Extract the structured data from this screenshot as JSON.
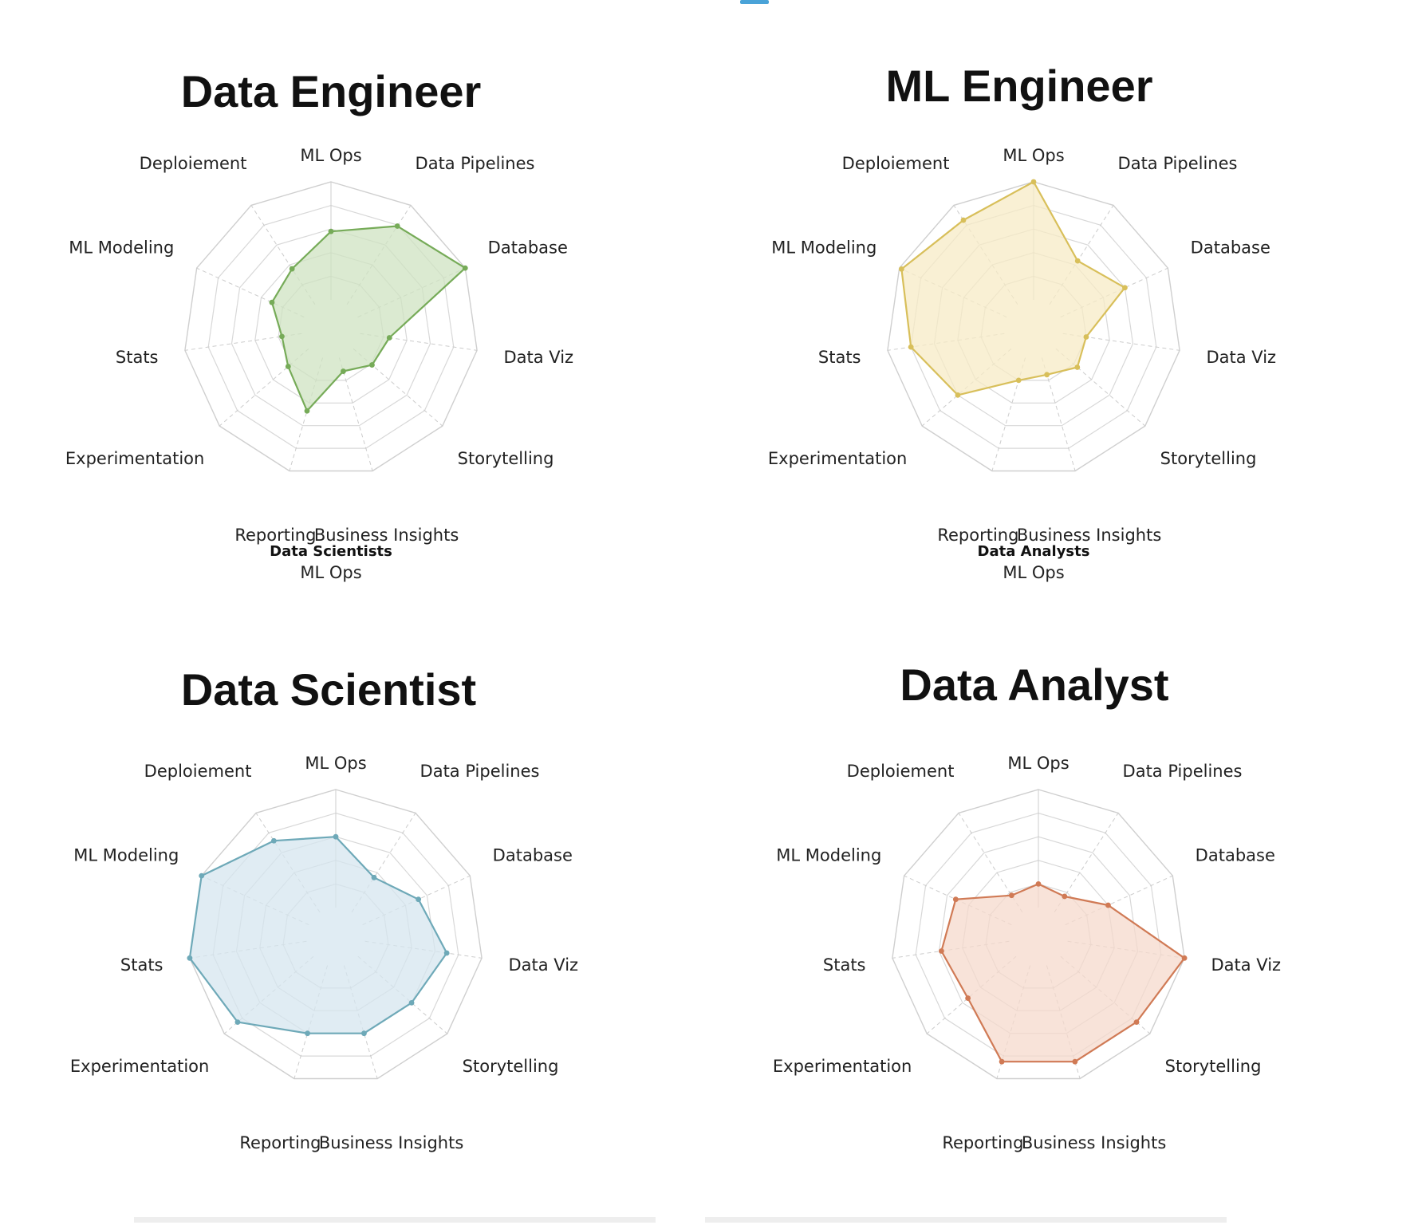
{
  "colors": {
    "data_engineer": {
      "stroke": "#76ab58",
      "fill": "#cfe3c2"
    },
    "ml_engineer": {
      "stroke": "#d8bf5a",
      "fill": "#f7ebc6"
    },
    "data_scientist": {
      "stroke": "#6ea9b8",
      "fill": "#d5e6ef"
    },
    "data_analyst": {
      "stroke": "#d07a55",
      "fill": "#f6d9cc"
    },
    "grid": "#d8d8d8"
  },
  "chart_data": [
    {
      "type": "radar",
      "title": "Data Engineer",
      "axes": [
        "ML Ops",
        "Data Pipelines",
        "Database",
        "Data Viz",
        "Storytelling",
        "Business Insights",
        "Reporting",
        "Experimentation",
        "Stats",
        "ML Modeling",
        "Deploiement"
      ],
      "values": [
        0.58,
        0.79,
        1.0,
        0.25,
        0.21,
        0.12,
        0.47,
        0.23,
        0.17,
        0.3,
        0.36
      ],
      "rlim": [
        0,
        1
      ],
      "rings": 5,
      "caption": "Data Scientists",
      "subcaption": "ML Ops",
      "color_key": "data_engineer"
    },
    {
      "type": "radar",
      "title": "ML Engineer",
      "axes": [
        "ML Ops",
        "Data Pipelines",
        "Database",
        "Data Viz",
        "Storytelling",
        "Business Insights",
        "Reporting",
        "Experimentation",
        "Stats",
        "ML Modeling",
        "Deploiement"
      ],
      "values": [
        1.0,
        0.44,
        0.6,
        0.2,
        0.24,
        0.15,
        0.2,
        0.6,
        0.8,
        0.98,
        0.85
      ],
      "rlim": [
        0,
        1
      ],
      "rings": 5,
      "caption": "Data Analysts",
      "subcaption": "ML Ops",
      "color_key": "ml_engineer"
    },
    {
      "type": "radar",
      "title": "Data Scientist",
      "axes": [
        "ML Ops",
        "Data Pipelines",
        "Database",
        "Data Viz",
        "Storytelling",
        "Business Insights",
        "Reporting",
        "Experimentation",
        "Stats",
        "ML Modeling",
        "Deploiement"
      ],
      "values": [
        0.6,
        0.35,
        0.52,
        0.7,
        0.6,
        0.6,
        0.6,
        0.85,
        1.0,
        1.0,
        0.72
      ],
      "rlim": [
        0,
        1
      ],
      "rings": 5,
      "caption": "",
      "subcaption": "",
      "color_key": "data_scientist"
    },
    {
      "type": "radar",
      "title": "Data Analyst",
      "axes": [
        "ML Ops",
        "Data Pipelines",
        "Database",
        "Data Viz",
        "Storytelling",
        "Business Insights",
        "Reporting",
        "Experimentation",
        "Stats",
        "ML Modeling",
        "Deploiement"
      ],
      "values": [
        0.2,
        0.16,
        0.4,
        1.0,
        0.85,
        0.85,
        0.85,
        0.54,
        0.58,
        0.52,
        0.17
      ],
      "rlim": [
        0,
        1
      ],
      "rings": 5,
      "caption": "",
      "subcaption": "",
      "color_key": "data_analyst"
    }
  ]
}
